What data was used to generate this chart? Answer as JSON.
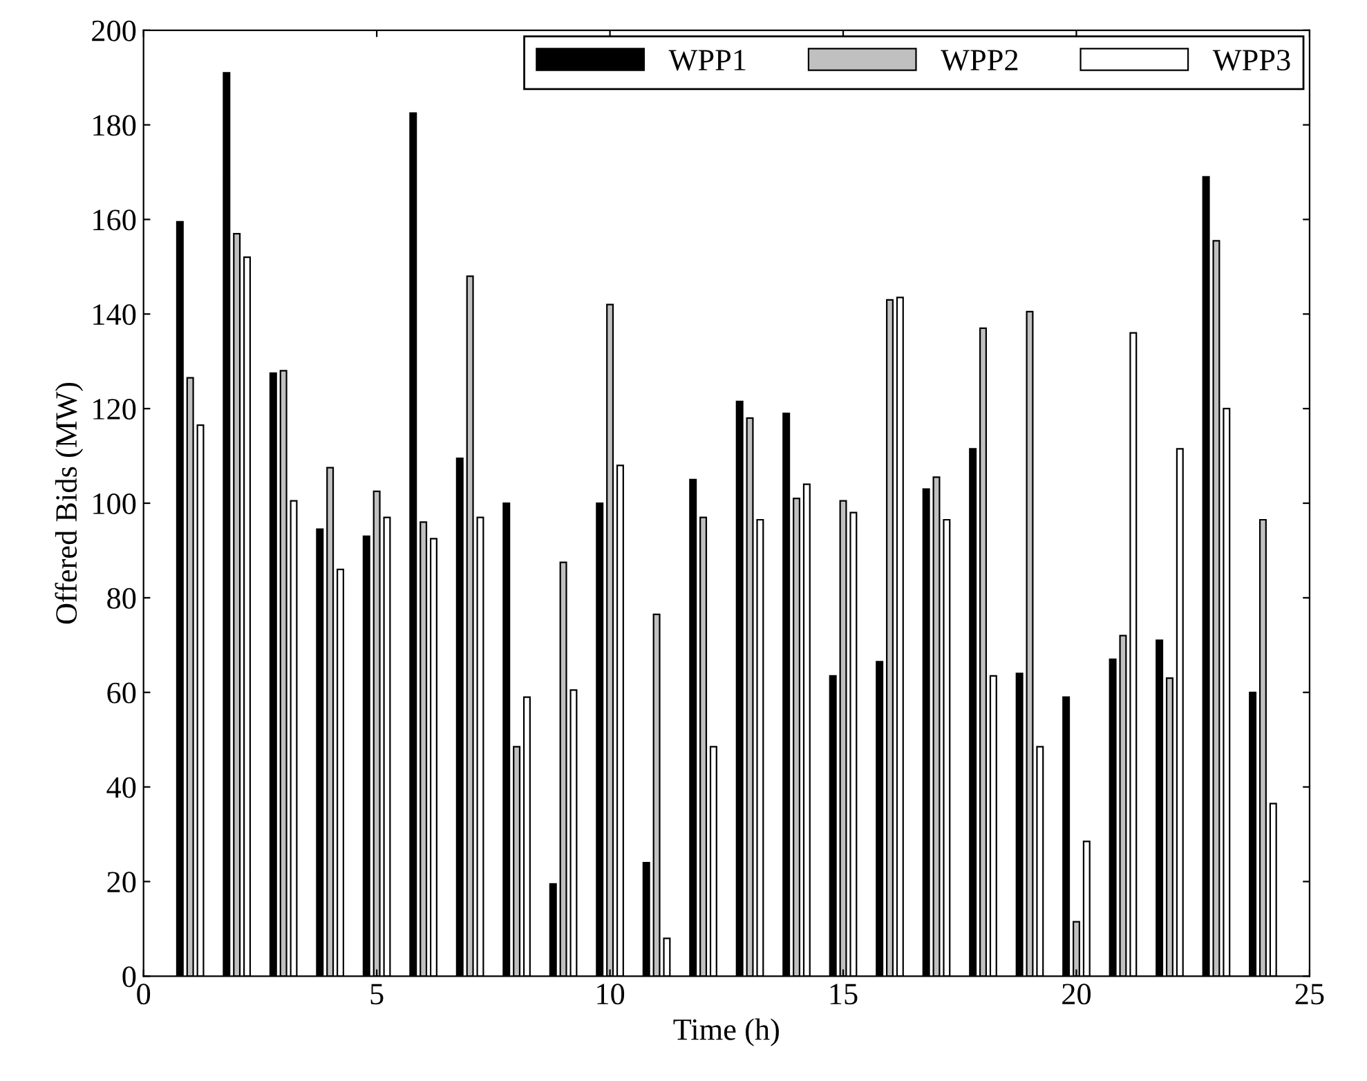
{
  "chart_data": {
    "type": "bar",
    "xlabel": "Time (h)",
    "ylabel": "Offered Bids (MW)",
    "x": [
      1,
      2,
      3,
      4,
      5,
      6,
      7,
      8,
      9,
      10,
      11,
      12,
      13,
      14,
      15,
      16,
      17,
      18,
      19,
      20,
      21,
      22,
      23,
      24
    ],
    "series": [
      {
        "name": "WPP1",
        "color": "#000000",
        "values": [
          159.5,
          191,
          127.5,
          94.5,
          93,
          182.5,
          109.5,
          100,
          19.5,
          100,
          24,
          105,
          121.5,
          119,
          63.5,
          66.5,
          103,
          111.5,
          64,
          59,
          67,
          71,
          169,
          60
        ]
      },
      {
        "name": "WPP2",
        "color": "#c0c0c0",
        "values": [
          126.5,
          157,
          128,
          107.5,
          102.5,
          96,
          148,
          48.5,
          87.5,
          142,
          76.5,
          97,
          118,
          101,
          100.5,
          143,
          105.5,
          137,
          140.5,
          11.5,
          72,
          63,
          155.5,
          96.5
        ]
      },
      {
        "name": "WPP3",
        "color": "#ffffff",
        "values": [
          116.5,
          152,
          100.5,
          86,
          97,
          92.5,
          97,
          59,
          60.5,
          108,
          8,
          48.5,
          96.5,
          104,
          98,
          143.5,
          96.5,
          63.5,
          48.5,
          28.5,
          136,
          111.5,
          120,
          36.5
        ]
      }
    ],
    "xlim": [
      0,
      25
    ],
    "xticks": [
      0,
      5,
      10,
      15,
      20,
      25
    ],
    "ylim": [
      0,
      200
    ],
    "yticks": [
      0,
      20,
      40,
      60,
      80,
      100,
      120,
      140,
      160,
      180,
      200
    ],
    "grid": false,
    "legend": "top right"
  }
}
